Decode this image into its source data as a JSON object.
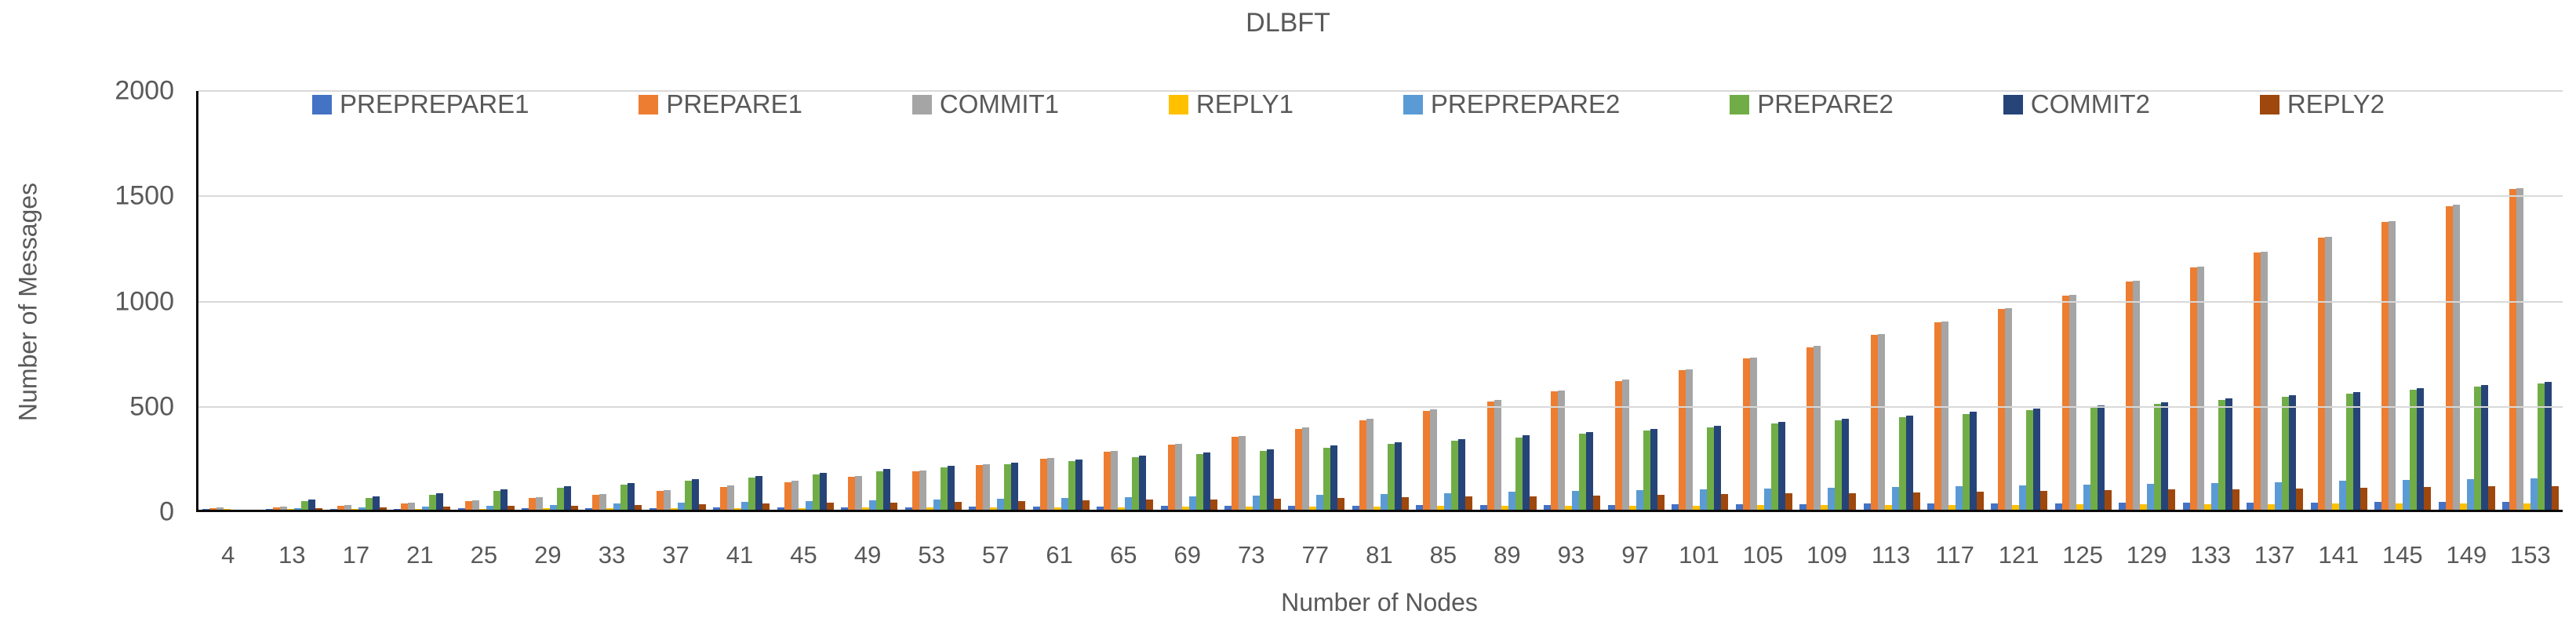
{
  "title": "DLBFT",
  "chart_data": {
    "type": "bar",
    "title": "DLBFT",
    "xlabel": "Number of Nodes",
    "ylabel": "Number of Messages",
    "ylim": [
      0,
      2000
    ],
    "yticks": [
      0,
      500,
      1000,
      1500,
      2000
    ],
    "grid": true,
    "legend_position": "top",
    "categories": [
      4,
      13,
      17,
      21,
      25,
      29,
      33,
      37,
      41,
      45,
      49,
      53,
      57,
      61,
      65,
      69,
      73,
      77,
      81,
      85,
      89,
      93,
      97,
      101,
      105,
      109,
      113,
      117,
      121,
      125,
      129,
      133,
      137,
      141,
      145,
      149,
      153
    ],
    "series": [
      {
        "name": "PREPREPARE1",
        "color": "#4472C4",
        "values": [
          3,
          3,
          4,
          5,
          6,
          7,
          8,
          9,
          10,
          11,
          12,
          13,
          14,
          15,
          16,
          17,
          18,
          19,
          20,
          21,
          22,
          23,
          24,
          25,
          26,
          27,
          28,
          29,
          30,
          31,
          32,
          33,
          34,
          35,
          36,
          37,
          38
        ]
      },
      {
        "name": "PREPARE1",
        "color": "#ED7D31",
        "values": [
          9,
          11,
          19,
          29,
          41,
          55,
          71,
          89,
          109,
          132,
          156,
          183,
          211,
          242,
          275,
          309,
          346,
          385,
          426,
          470,
          515,
          562,
          612,
          663,
          717,
          772,
          830,
          890,
          952,
          1016,
          1082,
          1150,
          1220,
          1292,
          1367,
          1443,
          1522
        ]
      },
      {
        "name": "COMMIT1",
        "color": "#A5A5A5",
        "values": [
          12,
          16,
          24,
          34,
          46,
          60,
          76,
          94,
          114,
          137,
          161,
          188,
          216,
          247,
          280,
          314,
          351,
          390,
          431,
          475,
          520,
          567,
          617,
          668,
          722,
          777,
          835,
          895,
          957,
          1021,
          1087,
          1155,
          1225,
          1297,
          1372,
          1448,
          1527
        ]
      },
      {
        "name": "REPLY1",
        "color": "#FFC000",
        "values": [
          4,
          3,
          3,
          4,
          5,
          6,
          7,
          7,
          8,
          9,
          10,
          11,
          11,
          12,
          13,
          14,
          15,
          15,
          16,
          17,
          18,
          19,
          19,
          20,
          21,
          22,
          23,
          23,
          24,
          25,
          26,
          27,
          27,
          28,
          29,
          30,
          31
        ]
      },
      {
        "name": "PREPREPARE2",
        "color": "#5B9BD5",
        "values": [
          0,
          8,
          12,
          16,
          20,
          24,
          28,
          32,
          36,
          40,
          44,
          48,
          52,
          56,
          60,
          64,
          68,
          72,
          76,
          80,
          84,
          88,
          92,
          96,
          100,
          104,
          108,
          112,
          116,
          120,
          124,
          128,
          132,
          136,
          140,
          144,
          148
        ]
      },
      {
        "name": "PREPARE2",
        "color": "#70AD47",
        "values": [
          0,
          40,
          56,
          72,
          88,
          104,
          120,
          136,
          152,
          168,
          184,
          200,
          216,
          232,
          248,
          264,
          280,
          296,
          312,
          328,
          344,
          360,
          376,
          392,
          408,
          424,
          440,
          456,
          472,
          488,
          504,
          520,
          536,
          552,
          568,
          584,
          600
        ]
      },
      {
        "name": "COMMIT2",
        "color": "#264478",
        "values": [
          0,
          48,
          64,
          80,
          96,
          112,
          128,
          144,
          160,
          176,
          192,
          208,
          224,
          240,
          256,
          272,
          288,
          304,
          320,
          336,
          352,
          368,
          384,
          400,
          416,
          432,
          448,
          464,
          480,
          496,
          512,
          528,
          544,
          560,
          576,
          592,
          608
        ]
      },
      {
        "name": "REPLY2",
        "color": "#9E480E",
        "values": [
          0,
          8,
          11,
          14,
          17,
          20,
          23,
          26,
          29,
          32,
          35,
          38,
          41,
          44,
          47,
          50,
          53,
          56,
          59,
          62,
          65,
          68,
          71,
          74,
          77,
          80,
          83,
          86,
          89,
          92,
          95,
          98,
          101,
          104,
          107,
          110,
          113
        ]
      }
    ],
    "colors": {
      "axis_text": "#595959",
      "gridline": "#D9D9D9",
      "axis_line": "#0A0A0A"
    }
  }
}
